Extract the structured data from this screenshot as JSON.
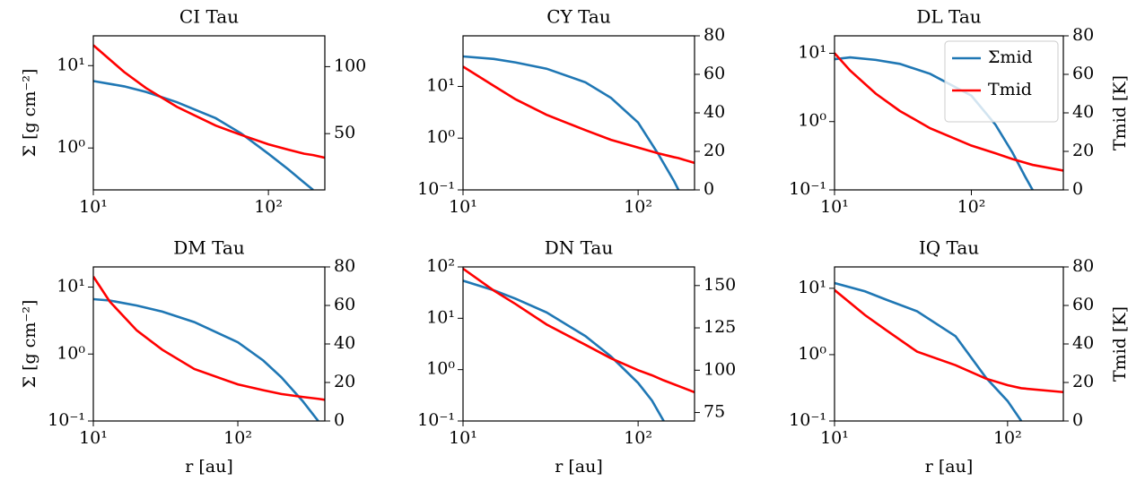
{
  "chart_data": [
    {
      "type": "line",
      "title": "CI Tau",
      "xlog": true,
      "ylog": true,
      "x": [
        10,
        15,
        20,
        30,
        50,
        70,
        100,
        130,
        160,
        180,
        210
      ],
      "xlim": [
        10,
        210
      ],
      "xticks": [
        {
          "value": 10,
          "label": "10¹"
        },
        {
          "value": 100,
          "label": "10²"
        }
      ],
      "ylim": [
        0.31,
        23
      ],
      "yticks": [
        {
          "value": 1,
          "label": "10⁰"
        },
        {
          "value": 10,
          "label": "10¹"
        }
      ],
      "y2lim": [
        8,
        123
      ],
      "y2ticks": [
        50,
        100
      ],
      "ylabel": "Σ [g cm⁻²]",
      "series": [
        {
          "color": "#1f77b4",
          "values": [
            6.5,
            5.6,
            4.8,
            3.6,
            2.3,
            1.5,
            0.85,
            0.55,
            0.38,
            0.31,
            null
          ]
        },
        {
          "color": "#ff0000",
          "axis": "y2",
          "values": [
            116,
            96,
            84,
            70,
            56,
            49,
            42,
            38,
            35,
            34,
            32
          ]
        }
      ]
    },
    {
      "type": "line",
      "title": "CY Tau",
      "xlog": true,
      "ylog": true,
      "x": [
        10,
        15,
        20,
        30,
        50,
        70,
        100,
        130,
        160,
        170,
        210
      ],
      "xlim": [
        10,
        210
      ],
      "xticks": [
        {
          "value": 10,
          "label": "10¹"
        },
        {
          "value": 100,
          "label": "10²"
        }
      ],
      "ylim": [
        0.1,
        95
      ],
      "yticks": [
        {
          "value": 0.1,
          "label": "10⁻¹"
        },
        {
          "value": 1,
          "label": "10⁰"
        },
        {
          "value": 10,
          "label": "10¹"
        }
      ],
      "y2lim": [
        0,
        80
      ],
      "y2ticks": [
        0,
        20,
        40,
        60,
        80
      ],
      "series": [
        {
          "color": "#1f77b4",
          "values": [
            38,
            34,
            29,
            22,
            12,
            6,
            2,
            0.5,
            0.15,
            0.1,
            null
          ]
        },
        {
          "color": "#ff0000",
          "axis": "y2",
          "values": [
            64,
            54,
            47,
            39,
            31,
            26,
            22,
            19,
            17,
            16.5,
            14
          ]
        }
      ]
    },
    {
      "type": "line",
      "title": "DL Tau",
      "xlog": true,
      "ylog": true,
      "x": [
        10,
        13,
        20,
        30,
        50,
        100,
        150,
        200,
        250,
        280,
        470
      ],
      "xlim": [
        10,
        470
      ],
      "xticks": [
        {
          "value": 10,
          "label": "10¹"
        },
        {
          "value": 100,
          "label": "10²"
        }
      ],
      "ylim": [
        0.1,
        18
      ],
      "yticks": [
        {
          "value": 0.1,
          "label": "10⁻¹"
        },
        {
          "value": 1,
          "label": "10⁰"
        },
        {
          "value": 10,
          "label": "10¹"
        }
      ],
      "y2lim": [
        0,
        80
      ],
      "y2ticks": [
        0,
        20,
        40,
        60,
        80
      ],
      "y2label": "Tmid [K]",
      "legend": "upper right",
      "series": [
        {
          "name": "Σmid",
          "color": "#1f77b4",
          "values": [
            8.2,
            8.7,
            8,
            7,
            5,
            2.4,
            0.9,
            0.35,
            0.15,
            0.1,
            null
          ]
        },
        {
          "name": "Tmid",
          "color": "#ff0000",
          "axis": "y2",
          "values": [
            71,
            62,
            50,
            41,
            32,
            23,
            19,
            16,
            14,
            13,
            10
          ]
        }
      ]
    },
    {
      "type": "line",
      "title": "DM Tau",
      "xlog": true,
      "ylog": true,
      "x": [
        10,
        13,
        20,
        30,
        50,
        100,
        150,
        200,
        280,
        360,
        400
      ],
      "xlim": [
        10,
        400
      ],
      "xticks": [
        {
          "value": 10,
          "label": "10¹"
        },
        {
          "value": 100,
          "label": "10²"
        }
      ],
      "ylim": [
        0.1,
        20
      ],
      "yticks": [
        {
          "value": 0.1,
          "label": "10⁻¹"
        },
        {
          "value": 1,
          "label": "10⁰"
        },
        {
          "value": 10,
          "label": "10¹"
        }
      ],
      "y2lim": [
        0,
        80
      ],
      "y2ticks": [
        0,
        20,
        40,
        60,
        80
      ],
      "ylabel": "Σ [g cm⁻²]",
      "xlabel": "r [au]",
      "series": [
        {
          "color": "#1f77b4",
          "values": [
            6.6,
            6.3,
            5.3,
            4.3,
            3,
            1.5,
            0.8,
            0.45,
            0.2,
            0.1,
            null
          ]
        },
        {
          "color": "#ff0000",
          "axis": "y2",
          "values": [
            75,
            62,
            47,
            37,
            27,
            19,
            16,
            14,
            12.5,
            11.5,
            11
          ]
        }
      ]
    },
    {
      "type": "line",
      "title": "DN Tau",
      "xlog": true,
      "ylog": true,
      "x": [
        10,
        15,
        20,
        30,
        50,
        70,
        100,
        120,
        140,
        210
      ],
      "xlim": [
        10,
        210
      ],
      "xticks": [
        {
          "value": 10,
          "label": "10¹"
        },
        {
          "value": 100,
          "label": "10²"
        }
      ],
      "ylim": [
        0.1,
        100
      ],
      "yticks": [
        {
          "value": 0.1,
          "label": "10⁻¹"
        },
        {
          "value": 1,
          "label": "10⁰"
        },
        {
          "value": 10,
          "label": "10¹"
        },
        {
          "value": 100,
          "label": "10²"
        }
      ],
      "y2lim": [
        70,
        161
      ],
      "y2ticks": [
        75,
        100,
        125,
        150
      ],
      "xlabel": "r [au]",
      "series": [
        {
          "color": "#1f77b4",
          "values": [
            54,
            35,
            24,
            13,
            4.5,
            1.8,
            0.55,
            0.25,
            0.1,
            null
          ]
        },
        {
          "color": "#ff0000",
          "axis": "y2",
          "values": [
            160,
            147,
            139,
            127,
            115,
            107,
            100,
            97,
            94,
            87
          ]
        }
      ]
    },
    {
      "type": "line",
      "title": "IQ Tau",
      "xlog": true,
      "ylog": true,
      "x": [
        10,
        15,
        20,
        30,
        50,
        75,
        100,
        120,
        210
      ],
      "xlim": [
        10,
        210
      ],
      "xticks": [
        {
          "value": 10,
          "label": "10¹"
        },
        {
          "value": 100,
          "label": "10²"
        }
      ],
      "ylim": [
        0.1,
        21
      ],
      "yticks": [
        {
          "value": 0.1,
          "label": "10⁻¹"
        },
        {
          "value": 1,
          "label": "10⁰"
        },
        {
          "value": 10,
          "label": "10¹"
        }
      ],
      "y2lim": [
        0,
        80
      ],
      "y2ticks": [
        0,
        20,
        40,
        60,
        80
      ],
      "y2label": "Tmid [K]",
      "xlabel": "r [au]",
      "series": [
        {
          "color": "#1f77b4",
          "values": [
            12,
            9,
            6.7,
            4.5,
            1.9,
            0.45,
            0.2,
            0.1,
            null
          ]
        },
        {
          "color": "#ff0000",
          "axis": "y2",
          "values": [
            68,
            55,
            47,
            36,
            29,
            22,
            18.6,
            17,
            15
          ]
        }
      ]
    }
  ]
}
